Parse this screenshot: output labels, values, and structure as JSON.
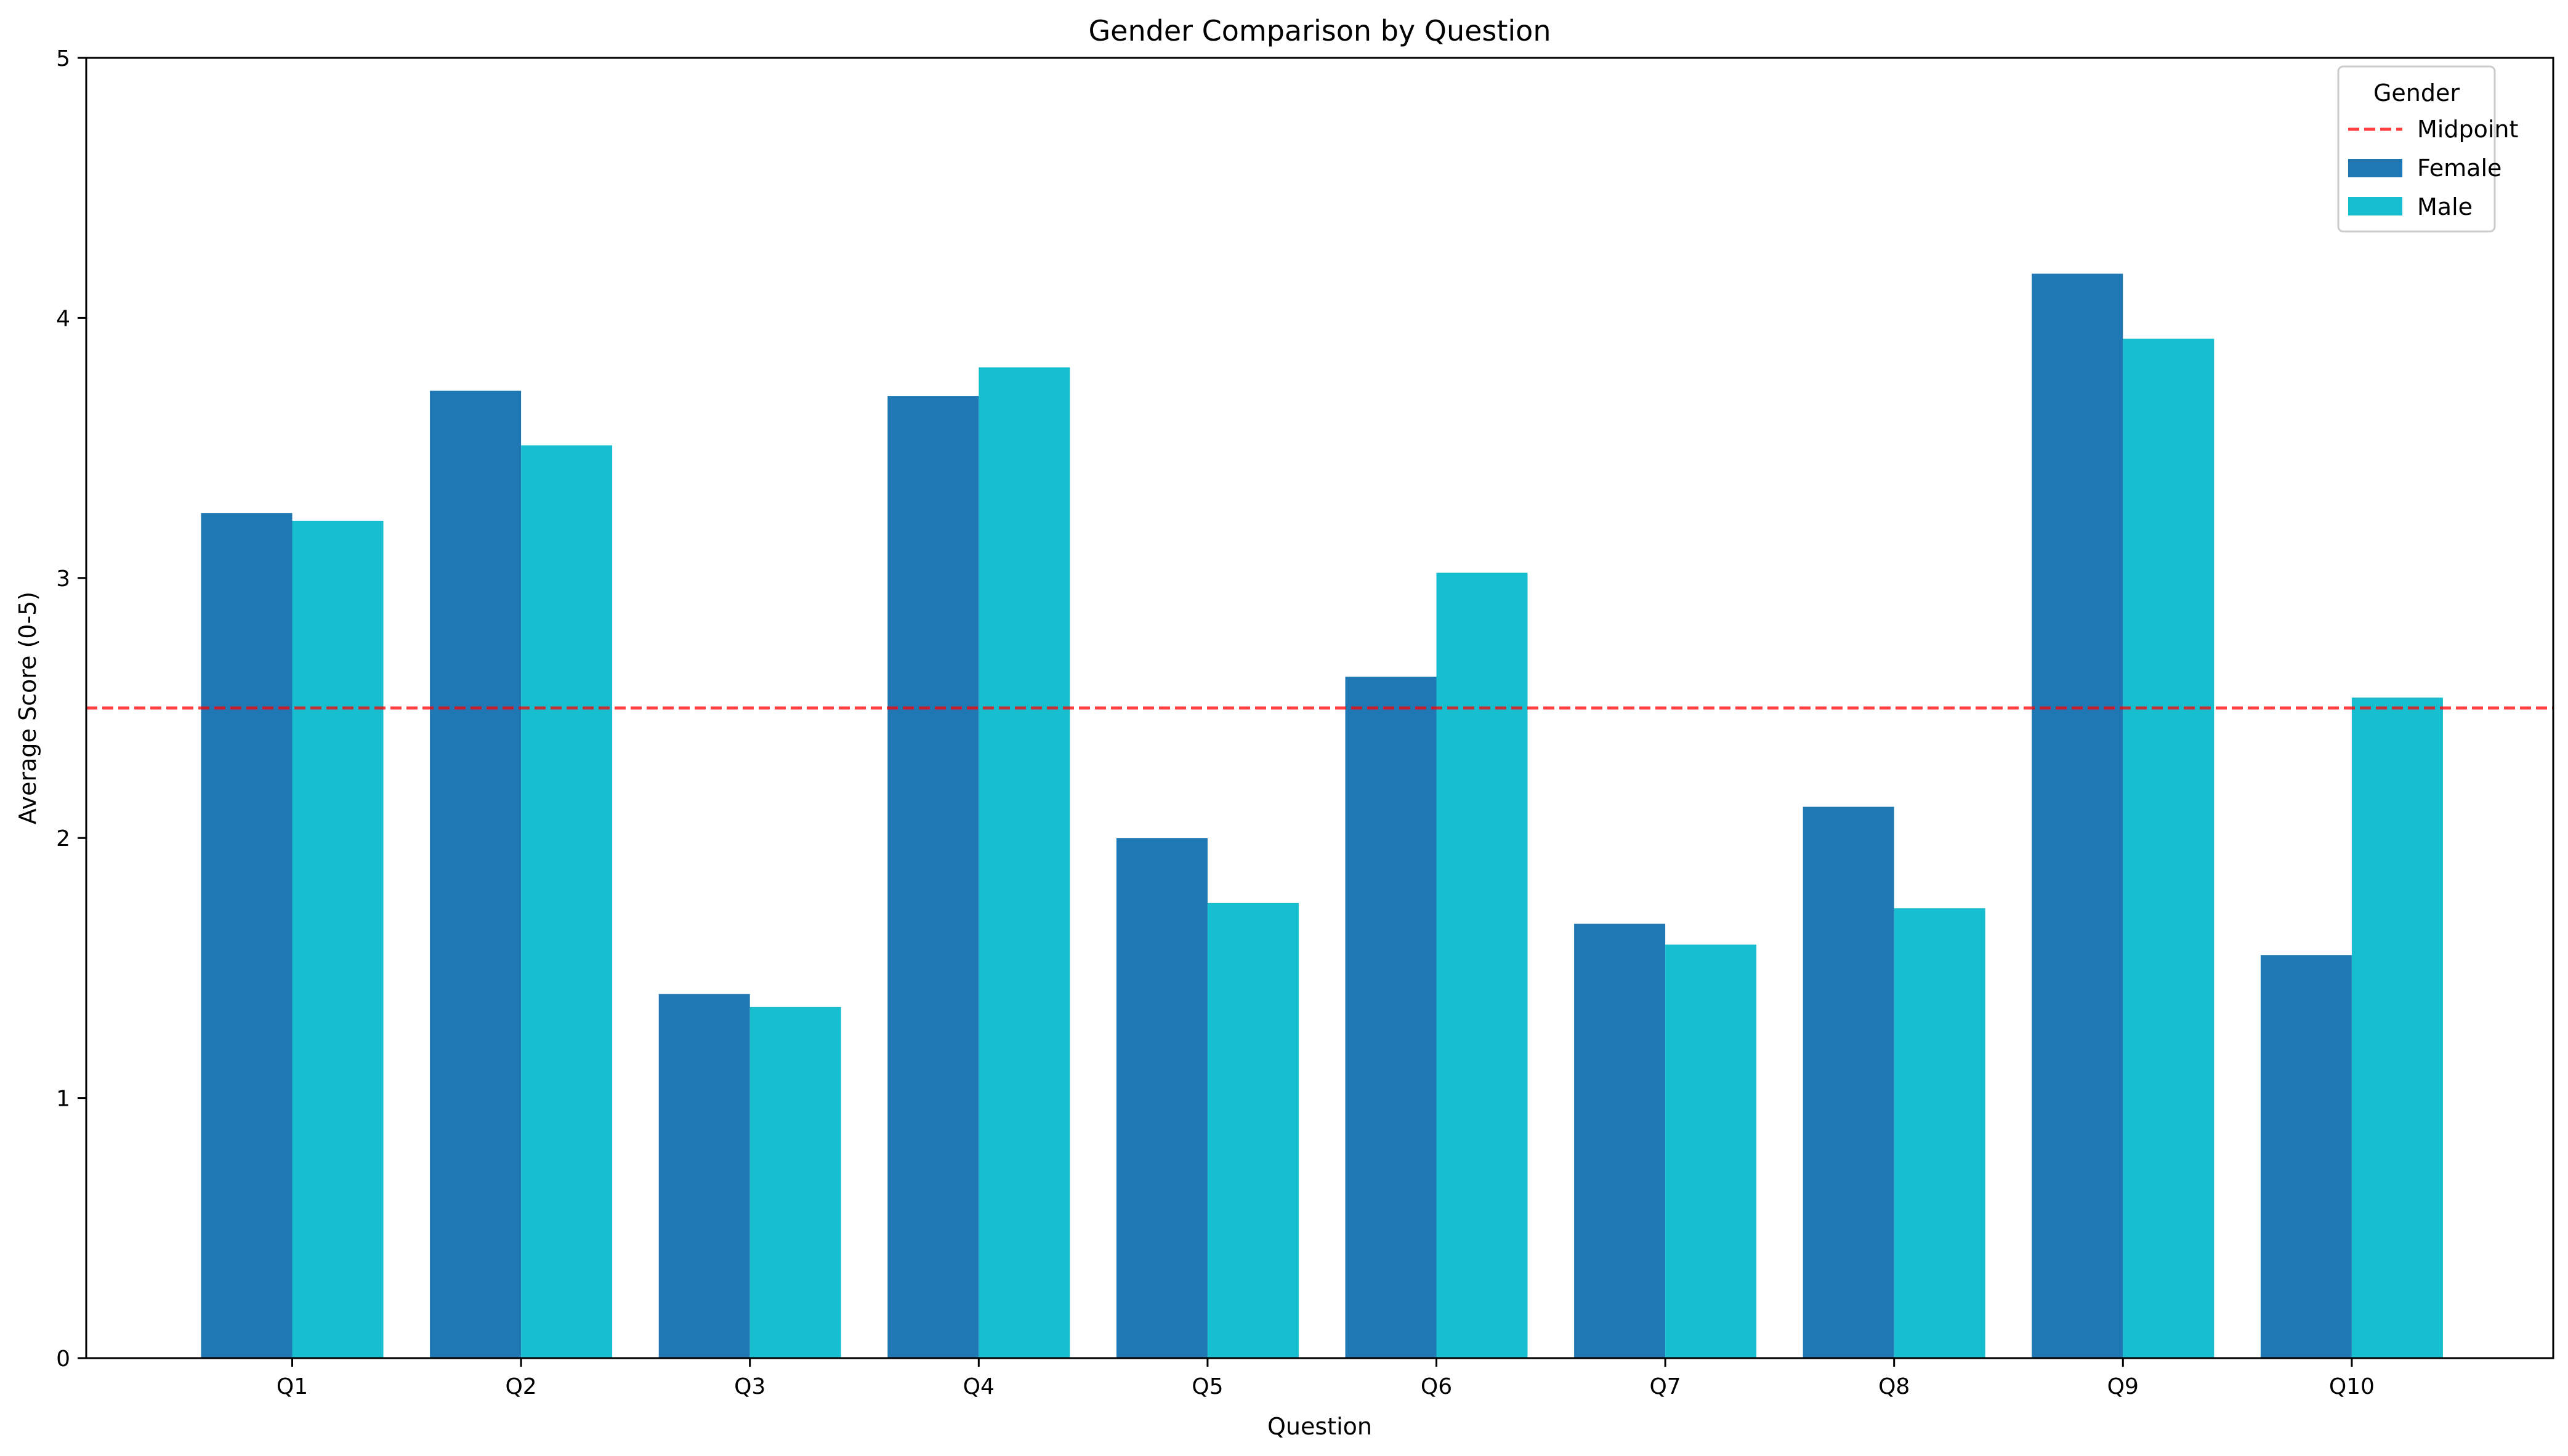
{
  "chart_data": {
    "type": "bar",
    "title": "Gender Comparison by Question",
    "xlabel": "Question",
    "ylabel": "Average Score (0-5)",
    "categories": [
      "Q1",
      "Q2",
      "Q3",
      "Q4",
      "Q5",
      "Q6",
      "Q7",
      "Q8",
      "Q9",
      "Q10"
    ],
    "series": [
      {
        "name": "Female",
        "color": "#1f77b4",
        "values": [
          3.25,
          3.72,
          1.4,
          3.7,
          2.0,
          2.62,
          1.67,
          2.12,
          4.17,
          1.55
        ]
      },
      {
        "name": "Male",
        "color": "#17becf",
        "values": [
          3.22,
          3.51,
          1.35,
          3.81,
          1.75,
          3.02,
          1.59,
          1.73,
          3.92,
          2.54
        ]
      }
    ],
    "ylim": [
      0,
      5
    ],
    "yticks": [
      "0",
      "1",
      "2",
      "3",
      "4",
      "5"
    ],
    "reference_line": {
      "name": "Midpoint",
      "value": 2.5,
      "color": "#ff0000",
      "style": "dashed"
    },
    "legend": {
      "title": "Gender",
      "placement": "top-right"
    },
    "grid": false
  }
}
